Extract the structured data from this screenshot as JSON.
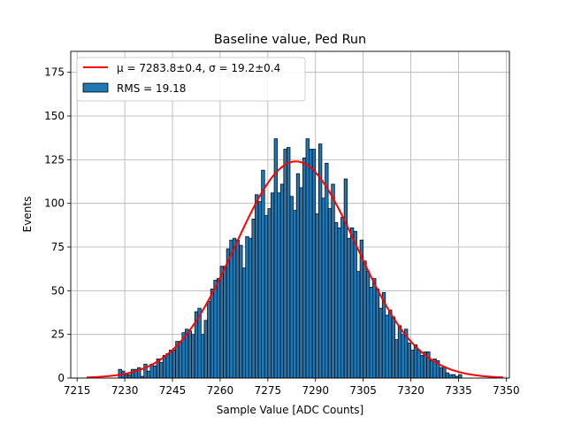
{
  "chart_data": {
    "type": "bar",
    "title": "Baseline value, Ped Run",
    "xlabel": "Sample Value [ADC Counts]",
    "ylabel": "Events",
    "xlim": [
      7213,
      7351
    ],
    "ylim": [
      0,
      187
    ],
    "xticks": [
      7215,
      7230,
      7245,
      7260,
      7275,
      7290,
      7305,
      7320,
      7335,
      7350
    ],
    "yticks": [
      0,
      25,
      50,
      75,
      100,
      125,
      150,
      175
    ],
    "grid": true,
    "legend_position": "top-left",
    "bin_start": 7228,
    "bin_width": 1,
    "series": [
      {
        "name": "RMS = 19.18",
        "color": "#1f77b4",
        "edgecolor": "#000000",
        "values": [
          5,
          4,
          2,
          2,
          5,
          5,
          6,
          1,
          8,
          4,
          8,
          7,
          11,
          9,
          13,
          14,
          16,
          16,
          21,
          21,
          26,
          28,
          27,
          25,
          38,
          40,
          25,
          33,
          44,
          51,
          56,
          57,
          64,
          64,
          74,
          79,
          80,
          79,
          76,
          63,
          81,
          80,
          91,
          105,
          101,
          119,
          93,
          97,
          106,
          137,
          106,
          111,
          131,
          132,
          104,
          96,
          117,
          109,
          126,
          137,
          131,
          131,
          94,
          134,
          103,
          123,
          97,
          111,
          89,
          86,
          92,
          114,
          80,
          86,
          84,
          61,
          79,
          67,
          61,
          52,
          57,
          51,
          40,
          49,
          36,
          39,
          35,
          22,
          30,
          25,
          28,
          20,
          16,
          19,
          16,
          13,
          15,
          15,
          10,
          11,
          10,
          6,
          6,
          3,
          2,
          2,
          1,
          2
        ]
      }
    ],
    "fit": {
      "name": "μ = 7283.8±0.4, σ = 19.2±0.4",
      "color": "#ff0000",
      "mu": 7283.8,
      "sigma": 19.2,
      "amplitude": 124,
      "x_range": [
        7218,
        7349
      ]
    }
  }
}
